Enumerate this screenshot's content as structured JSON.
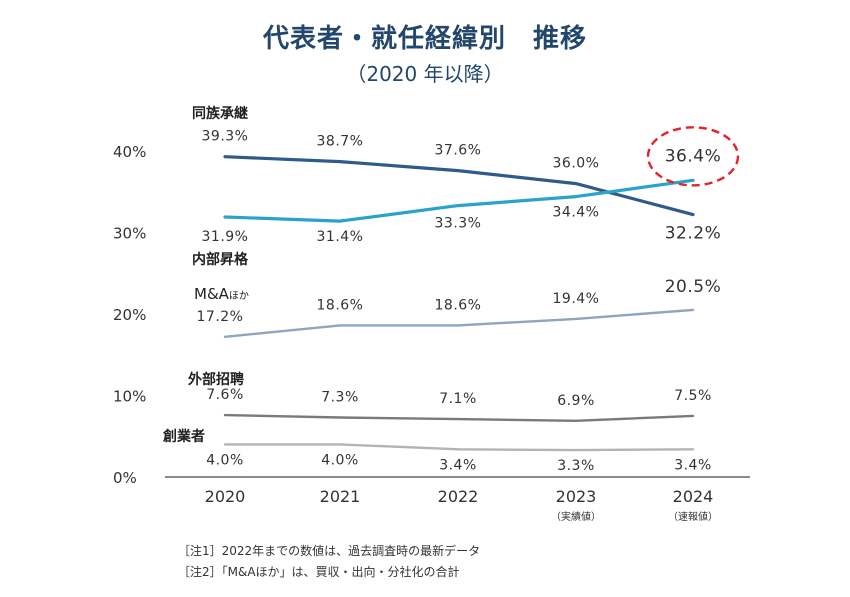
{
  "title": "代表者・就任経緯別　推移",
  "subtitle": "（2020 年以降）",
  "notes": [
    "［注1］2022年までの数値は、過去調査時の最新データ",
    "［注2］「M&Aほか」は、買収・出向・分社化の合計"
  ],
  "chart_data": {
    "type": "line",
    "categories": [
      "2020",
      "2021",
      "2022",
      "2023",
      "2024"
    ],
    "category_sublabels": [
      "",
      "",
      "",
      "（実績値）",
      "（速報値）"
    ],
    "y_ticks": [
      "0%",
      "10%",
      "20%",
      "30%",
      "40%"
    ],
    "ylim": [
      0,
      40
    ],
    "unit": "%",
    "highlight": {
      "series": "内部昇格",
      "category": "2024"
    },
    "series": [
      {
        "name": "同族承継",
        "color": "#2e5b8a",
        "values": [
          39.3,
          38.7,
          37.6,
          36.0,
          32.2
        ],
        "labels": [
          "39.3%",
          "38.7%",
          "37.6%",
          "36.0%",
          "32.2%"
        ]
      },
      {
        "name": "内部昇格",
        "color": "#2aa3c9",
        "values": [
          31.9,
          31.4,
          33.3,
          34.4,
          36.4
        ],
        "labels": [
          "31.9%",
          "31.4%",
          "33.3%",
          "34.4%",
          "36.4%"
        ]
      },
      {
        "name": "M&Aほか",
        "color": "#8fa4bd",
        "values": [
          17.2,
          18.6,
          18.6,
          19.4,
          20.5
        ],
        "labels": [
          "17.2%",
          "18.6%",
          "18.6%",
          "19.4%",
          "20.5%"
        ]
      },
      {
        "name": "外部招聘",
        "color": "#7a7a7a",
        "values": [
          7.6,
          7.3,
          7.1,
          6.9,
          7.5
        ],
        "labels": [
          "7.6%",
          "7.3%",
          "7.1%",
          "6.9%",
          "7.5%"
        ]
      },
      {
        "name": "創業者",
        "color": "#b3b3b3",
        "values": [
          4.0,
          4.0,
          3.4,
          3.3,
          3.4
        ],
        "labels": [
          "4.0%",
          "4.0%",
          "3.4%",
          "3.3%",
          "3.4%"
        ]
      }
    ],
    "highlight_color": "#e0242a"
  }
}
